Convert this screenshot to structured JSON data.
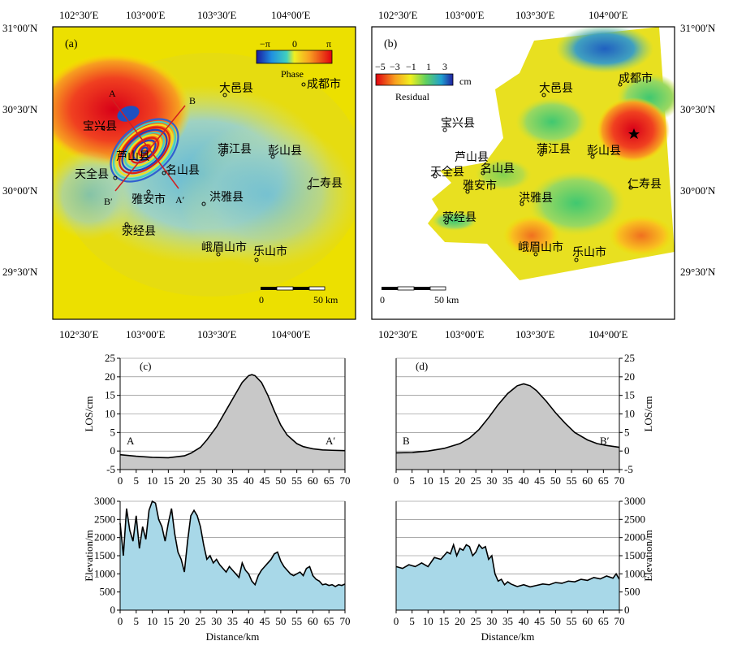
{
  "panel_a": {
    "label": "(a)",
    "colorbar": {
      "min": "−π",
      "mid": "0",
      "max": "π",
      "title": "Phase"
    },
    "profile_labels": {
      "A": "A",
      "A_prime": "A′",
      "B": "B",
      "B_prime": "B′"
    },
    "scalebar": {
      "zero": "0",
      "end": "50 km"
    },
    "top_ticks": [
      "102°30′E",
      "103°00′E",
      "103°30′E",
      "104°00′E"
    ],
    "bottom_ticks": [
      "102°30′E",
      "103°00′E",
      "103°30′E",
      "104°00′E"
    ],
    "left_ticks": [
      "31°00′N",
      "30°30′N",
      "30°00′N",
      "29°30′N"
    ],
    "cities": {
      "dayi": "大邑县",
      "chengdu": "成都市",
      "baoxing": "宝兴县",
      "lushan": "芦山县",
      "mingshan": "名山县",
      "tianquan": "天全县",
      "yaan": "雅安市",
      "hongya": "洪雅县",
      "pujiang": "蒲江县",
      "pengshan": "彭山县",
      "renshou": "仁寿县",
      "yingjing": "荥经县",
      "emeishan": "峨眉山市",
      "leshan": "乐山市"
    }
  },
  "panel_b": {
    "label": "(b)",
    "colorbar": {
      "ticks": [
        "−5",
        "−3",
        "−1",
        "1",
        "3"
      ],
      "unit": "cm",
      "title": "Residual"
    },
    "scalebar": {
      "zero": "0",
      "end": "50 km"
    },
    "top_ticks": [
      "102°30′E",
      "103°00′E",
      "103°30′E",
      "104°00′E"
    ],
    "bottom_ticks": [
      "102°30′E",
      "103°00′E",
      "103°30′E",
      "104°00′E"
    ],
    "right_ticks": [
      "31°00′N",
      "30°30′N",
      "30°00′N",
      "29°30′N"
    ],
    "cities": {
      "dayi": "大邑县",
      "chengdu": "成都市",
      "baoxing": "宝兴县",
      "lushan": "芦山县",
      "mingshan": "名山县",
      "tianquan": "天全县",
      "yaan": "雅安市",
      "hongya": "洪雅县",
      "pujiang": "蒲江县",
      "pengshan": "彭山县",
      "renshou": "仁寿县",
      "yingjing": "荥经县",
      "emeishan": "峨眉山市",
      "leshan": "乐山市"
    }
  },
  "chart_data": [
    {
      "type": "area",
      "panel": "(c)",
      "xlabel": "Distance/km",
      "ylabel": "LOS/cm",
      "xlim": [
        0,
        70
      ],
      "ylim": [
        -5,
        25
      ],
      "xticks": [
        0,
        5,
        10,
        15,
        20,
        25,
        30,
        35,
        40,
        45,
        50,
        55,
        60,
        65,
        70
      ],
      "yticks": [
        -5,
        0,
        5,
        10,
        15,
        20,
        25
      ],
      "start_label": "A",
      "end_label": "A′",
      "x": [
        0,
        5,
        10,
        15,
        20,
        22,
        25,
        27,
        30,
        33,
        36,
        38,
        40,
        41,
        42,
        44,
        46,
        48,
        50,
        52,
        55,
        57,
        60,
        63,
        66,
        70
      ],
      "y": [
        -1,
        -1.4,
        -1.7,
        -1.8,
        -1.3,
        -0.6,
        1,
        3,
        6.5,
        11,
        15.5,
        18.5,
        20.3,
        20.6,
        20.3,
        18.5,
        15,
        10.8,
        7,
        4.3,
        2,
        1.2,
        0.6,
        0.3,
        0.2,
        0.1
      ]
    },
    {
      "type": "area",
      "panel": "(d)",
      "xlabel": "Distance/km",
      "ylabel": "LOS/cm",
      "xlim": [
        0,
        70
      ],
      "ylim": [
        -5,
        25
      ],
      "xticks": [
        0,
        5,
        10,
        15,
        20,
        25,
        30,
        35,
        40,
        45,
        50,
        55,
        60,
        65,
        70
      ],
      "yticks": [
        -5,
        0,
        5,
        10,
        15,
        20,
        25
      ],
      "start_label": "B",
      "end_label": "B′",
      "x": [
        0,
        5,
        10,
        15,
        20,
        23,
        26,
        29,
        32,
        35,
        38,
        40,
        42,
        44,
        47,
        50,
        53,
        56,
        60,
        63,
        66,
        70
      ],
      "y": [
        -0.5,
        -0.4,
        0,
        0.7,
        2,
        3.5,
        5.8,
        9,
        12.5,
        15.5,
        17.6,
        18.1,
        17.6,
        16.3,
        13.5,
        10.3,
        7.5,
        5,
        3,
        2,
        1.5,
        1
      ]
    },
    {
      "type": "area",
      "panel": "(c-elev)",
      "xlabel": "Distance/km",
      "ylabel": "Elevation/m",
      "xlim": [
        0,
        70
      ],
      "ylim": [
        0,
        3000
      ],
      "xticks": [
        0,
        5,
        10,
        15,
        20,
        25,
        30,
        35,
        40,
        45,
        50,
        55,
        60,
        65,
        70
      ],
      "yticks": [
        0,
        500,
        1000,
        1500,
        2000,
        2500,
        3000
      ],
      "x": [
        0,
        1,
        2,
        3,
        4,
        5,
        6,
        7,
        8,
        9,
        10,
        11,
        12,
        13,
        14,
        15,
        16,
        17,
        18,
        19,
        20,
        21,
        22,
        23,
        24,
        25,
        26,
        27,
        28,
        29,
        30,
        31,
        32,
        33,
        34,
        35,
        36,
        37,
        38,
        39,
        40,
        41,
        42,
        43,
        44,
        45,
        46,
        47,
        48,
        49,
        50,
        51,
        52,
        53,
        54,
        55,
        56,
        57,
        58,
        59,
        60,
        61,
        62,
        63,
        64,
        65,
        66,
        67,
        68,
        69,
        70
      ],
      "y": [
        2400,
        1500,
        2800,
        2200,
        1900,
        2600,
        1700,
        2300,
        1950,
        2750,
        3000,
        2950,
        2500,
        2300,
        1900,
        2400,
        2800,
        2100,
        1600,
        1400,
        1050,
        1900,
        2600,
        2750,
        2600,
        2300,
        1800,
        1400,
        1500,
        1300,
        1400,
        1250,
        1150,
        1050,
        1200,
        1100,
        1000,
        900,
        1300,
        1100,
        1000,
        800,
        700,
        950,
        1100,
        1200,
        1300,
        1400,
        1550,
        1600,
        1350,
        1200,
        1100,
        1000,
        950,
        1000,
        1050,
        950,
        1150,
        1200,
        950,
        850,
        800,
        700,
        720,
        680,
        700,
        650,
        700,
        680,
        720
      ]
    },
    {
      "type": "area",
      "panel": "(d-elev)",
      "xlabel": "Distance/km",
      "ylabel": "Elevation/m",
      "xlim": [
        0,
        70
      ],
      "ylim": [
        0,
        3000
      ],
      "xticks": [
        0,
        5,
        10,
        15,
        20,
        25,
        30,
        35,
        40,
        45,
        50,
        55,
        60,
        65,
        70
      ],
      "yticks": [
        0,
        500,
        1000,
        1500,
        2000,
        2500,
        3000
      ],
      "x": [
        0,
        2,
        4,
        6,
        8,
        10,
        12,
        14,
        16,
        17,
        18,
        19,
        20,
        21,
        22,
        23,
        24,
        25,
        26,
        27,
        28,
        29,
        30,
        31,
        32,
        33,
        34,
        35,
        36,
        38,
        40,
        42,
        44,
        46,
        48,
        50,
        52,
        54,
        56,
        58,
        60,
        62,
        64,
        66,
        68,
        69,
        70
      ],
      "y": [
        1200,
        1150,
        1250,
        1200,
        1300,
        1200,
        1450,
        1400,
        1600,
        1550,
        1800,
        1500,
        1700,
        1650,
        1800,
        1750,
        1500,
        1600,
        1800,
        1700,
        1750,
        1400,
        1500,
        1000,
        800,
        850,
        700,
        780,
        720,
        650,
        700,
        640,
        680,
        720,
        700,
        760,
        740,
        800,
        780,
        850,
        820,
        900,
        860,
        940,
        880,
        1000,
        850
      ]
    }
  ]
}
